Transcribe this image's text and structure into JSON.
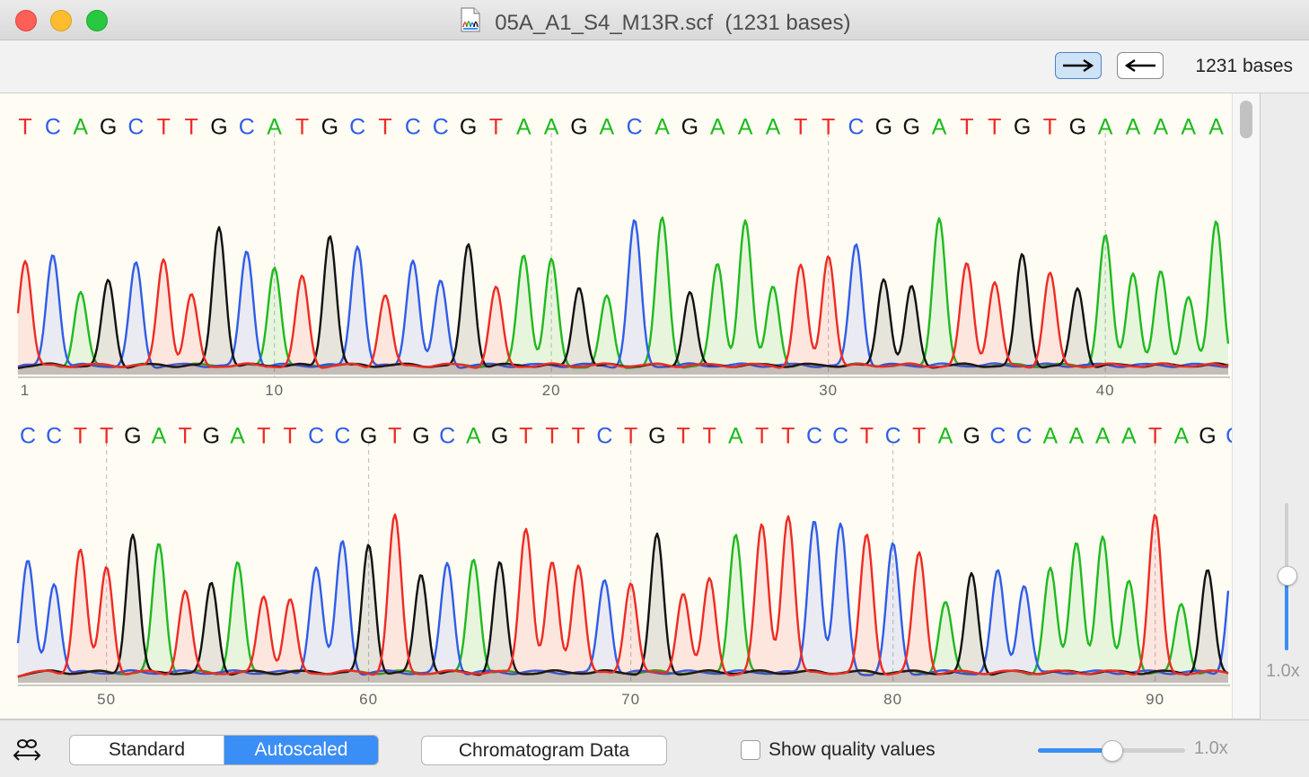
{
  "window": {
    "file_name": "05A_A1_S4_M13R.scf",
    "bases_suffix": "(1231 bases)",
    "file_icon": "chromatogram-document-icon"
  },
  "toolbar": {
    "forward_icon": "arrow-right-icon",
    "reverse_icon": "arrow-left-icon",
    "bases_count": "1231 bases"
  },
  "colors": {
    "A": "#1fba1f",
    "C": "#2f5de8",
    "G": "#111111",
    "T": "#ee2b23",
    "accent": "#3b8ef5",
    "background": "#fffcf3"
  },
  "chromatogram": {
    "rows": [
      {
        "sequence": "TCAGCTTGCATGCTCCGTAAGACAGAAATTCGGATTGTGAAAAATT",
        "start_position": 1,
        "position_labels": [
          "1",
          "10",
          "20",
          "30",
          "40"
        ]
      },
      {
        "sequence": "CCTTGATGATTCCGTGCAGTTTCTGTTATTCCTCTAGCCAAAATAGC",
        "start_position": 47,
        "position_labels": [
          "50",
          "60",
          "70",
          "80",
          "90"
        ]
      }
    ]
  },
  "side_zoom": {
    "label": "1.0x",
    "level_fraction": 0.5
  },
  "footer": {
    "link_icon": "link-scroll-icon",
    "segments": [
      "Standard",
      "Autoscaled"
    ],
    "selected_segment": "Autoscaled",
    "chromatogram_button": "Chromatogram Data",
    "quality_checkbox_label": "Show quality values",
    "quality_checked": false,
    "zoom_label": "1.0x",
    "zoom_fraction": 0.5
  }
}
